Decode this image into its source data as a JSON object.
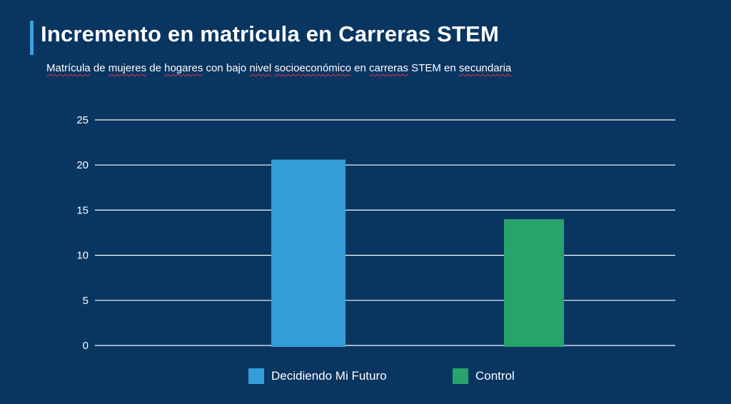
{
  "title": "Incremento en matricula en Carreras STEM",
  "subtitle_parts": [
    {
      "text": "Matrícula",
      "u": true
    },
    {
      "text": " de ",
      "u": false
    },
    {
      "text": "mujeres",
      "u": true
    },
    {
      "text": " de ",
      "u": false
    },
    {
      "text": "hogares",
      "u": true
    },
    {
      "text": " con bajo ",
      "u": false
    },
    {
      "text": "nivel",
      "u": true
    },
    {
      "text": " ",
      "u": false
    },
    {
      "text": "socioeconómico",
      "u": true
    },
    {
      "text": " en ",
      "u": false
    },
    {
      "text": "carreras",
      "u": true
    },
    {
      "text": " STEM en ",
      "u": false
    },
    {
      "text": "secundaria",
      "u": true
    }
  ],
  "colors": {
    "background": "#093561",
    "accent": "#3ba0de",
    "grid": "#ffffff"
  },
  "chart_data": {
    "type": "bar",
    "categories": [
      "Decidiendo Mi Futuro",
      "Control"
    ],
    "values": [
      20.6,
      14.0
    ],
    "colors": [
      "#359ed9",
      "#27a36b"
    ],
    "ylim": [
      0,
      25
    ],
    "yticks": [
      0,
      5,
      10,
      15,
      20,
      25
    ],
    "grid": true,
    "legend": "bottom-center",
    "xlabel": "",
    "ylabel": ""
  }
}
